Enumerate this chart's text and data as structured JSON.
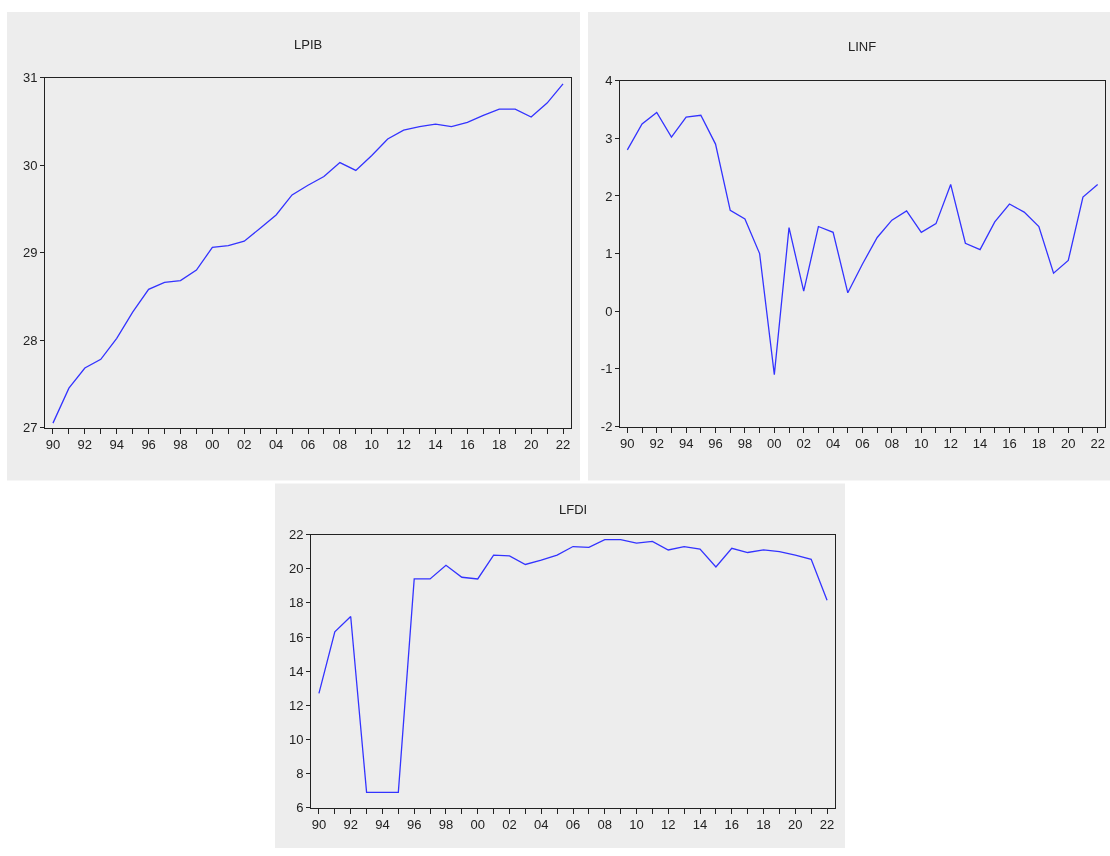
{
  "chart_data": [
    {
      "type": "line",
      "title": "LPIB",
      "categories": [
        "90",
        null,
        "92",
        null,
        "94",
        null,
        "96",
        null,
        "98",
        null,
        "00",
        null,
        "02",
        null,
        "04",
        null,
        "06",
        null,
        "08",
        null,
        "10",
        null,
        "12",
        null,
        "14",
        null,
        "16",
        null,
        "18",
        null,
        "20",
        null,
        "22"
      ],
      "values": [
        27.05,
        27.45,
        27.68,
        27.78,
        28.02,
        28.32,
        28.58,
        28.66,
        28.68,
        28.8,
        29.06,
        29.08,
        29.13,
        29.28,
        29.43,
        29.66,
        29.77,
        29.87,
        30.03,
        29.94,
        30.11,
        30.3,
        30.4,
        30.44,
        30.47,
        30.44,
        30.49,
        30.57,
        30.64,
        30.64,
        30.55,
        30.71,
        30.93
      ],
      "color": "#3333ff",
      "ylim": [
        27,
        31
      ],
      "yticks": [
        27,
        28,
        29,
        30,
        31
      ],
      "grid": false
    },
    {
      "type": "line",
      "title": "LINF",
      "categories": [
        "90",
        null,
        "92",
        null,
        "94",
        null,
        "96",
        null,
        "98",
        null,
        "00",
        null,
        "02",
        null,
        "04",
        null,
        "06",
        null,
        "08",
        null,
        "10",
        null,
        "12",
        null,
        "14",
        null,
        "16",
        null,
        "18",
        null,
        "20",
        null,
        "22"
      ],
      "values": [
        2.8,
        3.25,
        3.45,
        3.02,
        3.37,
        3.4,
        2.9,
        1.75,
        1.6,
        1.0,
        -1.1,
        1.45,
        0.35,
        1.47,
        1.37,
        0.32,
        0.82,
        1.28,
        1.58,
        1.74,
        1.37,
        1.52,
        2.2,
        1.18,
        1.07,
        1.55,
        1.86,
        1.72,
        1.47,
        0.66,
        0.88,
        1.98,
        2.2
      ],
      "color": "#3333ff",
      "ylim": [
        -2,
        4
      ],
      "yticks": [
        -2,
        -1,
        0,
        1,
        2,
        3,
        4
      ],
      "grid": false
    },
    {
      "type": "line",
      "title": "LFDI",
      "categories": [
        "90",
        null,
        "92",
        null,
        "94",
        null,
        "96",
        null,
        "98",
        null,
        "00",
        null,
        "02",
        null,
        "04",
        null,
        "06",
        null,
        "08",
        null,
        "10",
        null,
        "12",
        null,
        "14",
        null,
        "16",
        null,
        "18",
        null,
        "20",
        null,
        "22"
      ],
      "values": [
        12.7,
        16.3,
        17.2,
        6.9,
        6.9,
        6.9,
        19.4,
        19.4,
        20.2,
        19.5,
        19.4,
        20.8,
        20.75,
        20.25,
        20.5,
        20.8,
        21.3,
        21.25,
        21.7,
        21.7,
        21.5,
        21.6,
        21.1,
        21.3,
        21.15,
        20.1,
        21.2,
        20.95,
        21.1,
        21.0,
        20.8,
        20.55,
        18.15
      ],
      "color": "#3333ff",
      "ylim": [
        6,
        22
      ],
      "yticks": [
        6,
        8,
        10,
        12,
        14,
        16,
        18,
        20,
        22
      ],
      "grid": false
    }
  ]
}
